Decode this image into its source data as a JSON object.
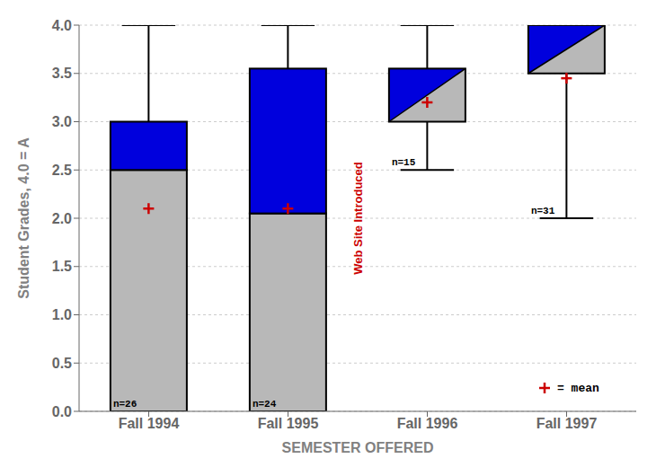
{
  "chart_data": {
    "type": "box",
    "xlabel": "SEMESTER OFFERED",
    "ylabel": "Student Grades, 4.0 = A",
    "categories": [
      "Fall 1994",
      "Fall 1995",
      "Fall 1996",
      "Fall 1997"
    ],
    "ylim": [
      0.0,
      4.0
    ],
    "yticks": [
      {
        "value": 0.0,
        "label": "0.0"
      },
      {
        "value": 0.5,
        "label": "0.5"
      },
      {
        "value": 1.0,
        "label": "1.0"
      },
      {
        "value": 1.5,
        "label": "1.5"
      },
      {
        "value": 2.0,
        "label": "2.0"
      },
      {
        "value": 2.5,
        "label": "2.5"
      },
      {
        "value": 3.0,
        "label": "3.0"
      },
      {
        "value": 3.5,
        "label": "3.5"
      },
      {
        "value": 4.0,
        "label": "4.0"
      }
    ],
    "grid": true,
    "legend": "lower right",
    "whiskers": {
      "color": "#000000",
      "low": [
        0.0,
        0.0,
        2.5,
        2.0
      ],
      "high": [
        4.0,
        4.0,
        4.0,
        4.0
      ]
    },
    "lower_box": {
      "color": "#b8b8b8",
      "bottom": [
        0.0,
        0.0,
        3.0,
        3.5
      ],
      "top": [
        2.5,
        2.05,
        3.55,
        4.0
      ]
    },
    "upper_box": {
      "color": "#0000dd",
      "bottom": [
        2.5,
        2.05,
        3.0,
        3.5
      ],
      "top": [
        3.0,
        3.55,
        3.55,
        4.0
      ]
    },
    "mean": {
      "name": "= mean",
      "color": "#cc0000",
      "values": [
        2.1,
        2.1,
        3.2,
        3.45
      ]
    },
    "n_labels": [
      "n=26",
      "n=24",
      "n=15",
      "n=31"
    ],
    "annotations": [
      {
        "text": "Web Site Introduced",
        "color": "#cc0000"
      }
    ]
  }
}
